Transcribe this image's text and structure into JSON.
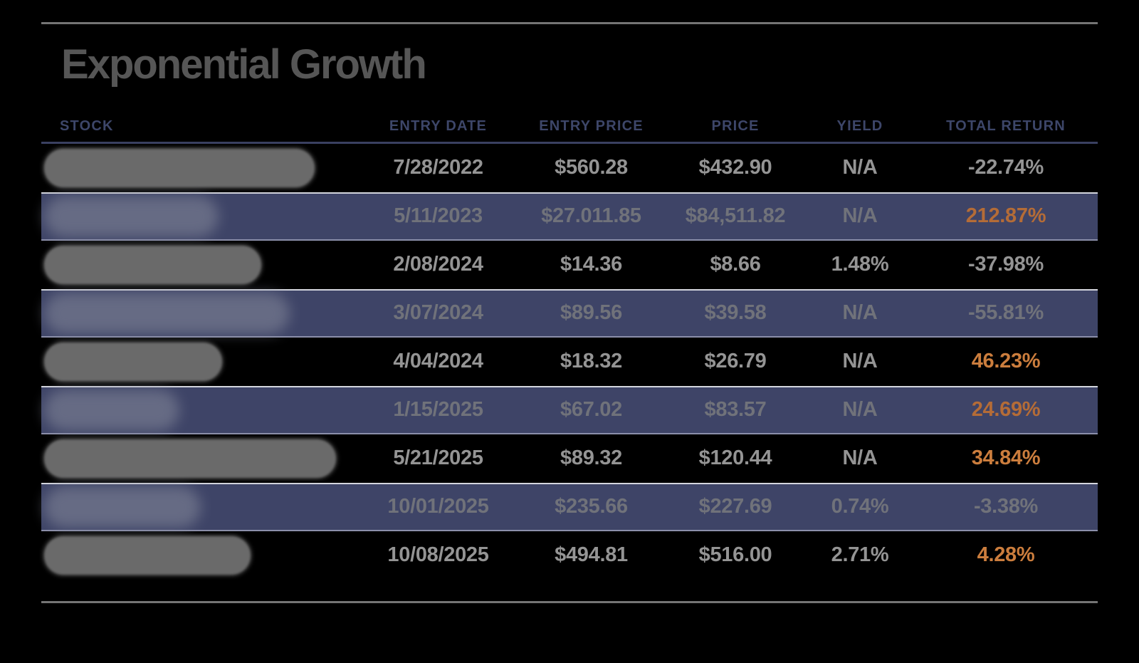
{
  "title": "Exponential Growth",
  "table": {
    "columns": [
      "STOCK",
      "ENTRY DATE",
      "ENTRY PRICE",
      "PRICE",
      "YIELD",
      "TOTAL RETURN"
    ],
    "rows": [
      {
        "stock": "",
        "stock_redacted": true,
        "redaction_width": 380,
        "entry_date": "7/28/2022",
        "entry_price": "$560.28",
        "yield_value": "N/A",
        "price": "$432.90",
        "total_return": "-22.74%",
        "return_orange": false,
        "shaded": false
      },
      {
        "stock": "",
        "stock_redacted": true,
        "redaction_width": 245,
        "entry_date": "5/11/2023",
        "entry_price": "$27.011.85",
        "yield_value": "N/A",
        "price": "$84,511.82",
        "total_return": "212.87%",
        "return_orange": true,
        "shaded": true
      },
      {
        "stock": "",
        "stock_redacted": true,
        "redaction_width": 305,
        "entry_date": "2/08/2024",
        "entry_price": "$14.36",
        "yield_value": "1.48%",
        "price": "$8.66",
        "total_return": "-37.98%",
        "return_orange": false,
        "shaded": false
      },
      {
        "stock": "",
        "stock_redacted": true,
        "redaction_width": 345,
        "entry_date": "3/07/2024",
        "entry_price": "$89.56",
        "yield_value": "N/A",
        "price": "$39.58",
        "total_return": "-55.81%",
        "return_orange": false,
        "shaded": true
      },
      {
        "stock": "",
        "stock_redacted": true,
        "redaction_width": 250,
        "entry_date": "4/04/2024",
        "entry_price": "$18.32",
        "yield_value": "N/A",
        "price": "$26.79",
        "total_return": "46.23%",
        "return_orange": true,
        "shaded": false
      },
      {
        "stock": "",
        "stock_redacted": true,
        "redaction_width": 190,
        "entry_date": "1/15/2025",
        "entry_price": "$67.02",
        "yield_value": "N/A",
        "price": "$83.57",
        "total_return": "24.69%",
        "return_orange": true,
        "shaded": true
      },
      {
        "stock": "",
        "stock_redacted": true,
        "redaction_width": 410,
        "entry_date": "5/21/2025",
        "entry_price": "$89.32",
        "yield_value": "N/A",
        "price": "$120.44",
        "total_return": "34.84%",
        "return_orange": true,
        "shaded": false
      },
      {
        "stock": "",
        "stock_redacted": true,
        "redaction_width": 220,
        "entry_date": "10/01/2025",
        "entry_price": "$235.66",
        "yield_value": "0.74%",
        "price": "$227.69",
        "total_return": "-3.38%",
        "return_orange": false,
        "shaded": true
      },
      {
        "stock": "",
        "stock_redacted": true,
        "redaction_width": 290,
        "entry_date": "10/08/2025",
        "entry_price": "$494.81",
        "yield_value": "2.71%",
        "price": "$516.00",
        "total_return": "4.28%",
        "return_orange": true,
        "shaded": false
      }
    ]
  },
  "colors": {
    "background": "#000000",
    "band_navy": "#3e4467",
    "header_text": "#3d4669",
    "header_underline": "#3a4061",
    "title_text": "#565656",
    "rule_gray": "#747474",
    "row_text_dark_bg": "#949494",
    "row_text_navy_bg": "#70727a",
    "orange_on_dark": "#cb7d3d",
    "orange_on_navy": "#b46c37"
  },
  "chart_data": {
    "type": "table",
    "title": "Exponential Growth",
    "columns": [
      "STOCK",
      "ENTRY DATE",
      "ENTRY PRICE",
      "PRICE",
      "YIELD",
      "TOTAL RETURN"
    ],
    "rows": [
      [
        "[redacted]",
        "7/28/2022",
        "$560.28",
        "$432.90",
        "N/A",
        "-22.74%"
      ],
      [
        "[redacted]",
        "5/11/2023",
        "$27.011.85",
        "$84,511.82",
        "N/A",
        "212.87%"
      ],
      [
        "[redacted]",
        "2/08/2024",
        "$14.36",
        "$8.66",
        "1.48%",
        "-37.98%"
      ],
      [
        "[redacted]",
        "3/07/2024",
        "$89.56",
        "$39.58",
        "N/A",
        "-55.81%"
      ],
      [
        "[redacted]",
        "4/04/2024",
        "$18.32",
        "$26.79",
        "N/A",
        "46.23%"
      ],
      [
        "[redacted]",
        "1/15/2025",
        "$67.02",
        "$83.57",
        "N/A",
        "24.69%"
      ],
      [
        "[redacted]",
        "5/21/2025",
        "$89.32",
        "$120.44",
        "N/A",
        "34.84%"
      ],
      [
        "[redacted]",
        "10/01/2025",
        "$235.66",
        "$227.69",
        "0.74%",
        "-3.38%"
      ],
      [
        "[redacted]",
        "10/08/2025",
        "$494.81",
        "$516.00",
        "2.71%",
        "4.28%"
      ]
    ],
    "notes": "Rows alternate black and navy backgrounds; positive total returns rendered in orange, negative in gray; stock names are blurred out."
  }
}
